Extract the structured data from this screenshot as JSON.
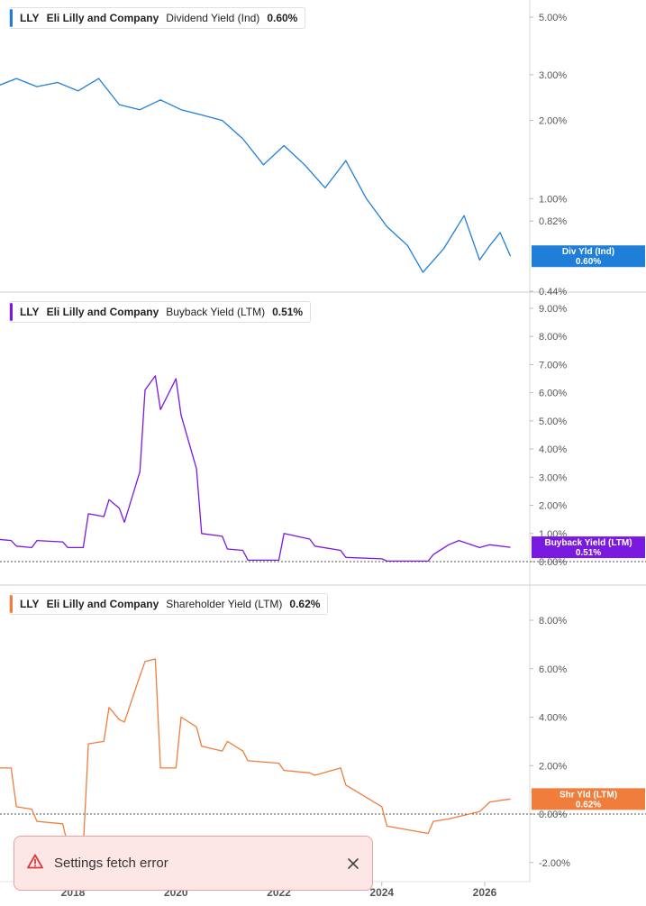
{
  "chart_data": [
    {
      "type": "line",
      "ticker": "LLY",
      "company": "Eli Lilly and Company",
      "metric_label": "Dividend Yield (Ind)",
      "current_value": "0.60%",
      "badge": {
        "title": "Div Yld (Ind)",
        "value": "0.60%"
      },
      "color": "#1f7fd8",
      "y_scale": "log",
      "y_ticks": [
        "5.00%",
        "3.00%",
        "2.00%",
        "1.00%",
        "0.82%",
        "0.44%"
      ],
      "y_tick_values": [
        5.0,
        3.0,
        2.0,
        1.0,
        0.82,
        0.44
      ],
      "ylim": [
        0.44,
        6.0
      ],
      "series": [
        {
          "x": [
            2016.5,
            2016.9,
            2017.3,
            2017.7,
            2018.1,
            2018.5,
            2018.9,
            2019.3,
            2019.7,
            2020.1,
            2020.5,
            2020.9,
            2021.3,
            2021.7,
            2022.1,
            2022.5,
            2022.9,
            2023.3,
            2023.7,
            2024.1,
            2024.5,
            2024.8,
            2025.2,
            2025.6,
            2025.9,
            2026.1,
            2026.3,
            2026.5
          ],
          "y": [
            2.7,
            2.9,
            2.7,
            2.8,
            2.6,
            2.9,
            2.3,
            2.2,
            2.4,
            2.2,
            2.1,
            2.0,
            1.7,
            1.35,
            1.6,
            1.35,
            1.1,
            1.4,
            1.0,
            0.78,
            0.66,
            0.52,
            0.64,
            0.86,
            0.58,
            0.66,
            0.74,
            0.6
          ]
        }
      ]
    },
    {
      "type": "line",
      "ticker": "LLY",
      "company": "Eli Lilly and Company",
      "metric_label": "Buyback Yield (LTM)",
      "current_value": "0.51%",
      "badge": {
        "title": "Buyback Yield (LTM)",
        "value": "0.51%"
      },
      "color": "#7a19e0",
      "y_ticks": [
        "9.00%",
        "8.00%",
        "7.00%",
        "6.00%",
        "5.00%",
        "4.00%",
        "3.00%",
        "2.00%",
        "1.00%",
        "0.00%"
      ],
      "y_tick_values": [
        9,
        8,
        7,
        6,
        5,
        4,
        3,
        2,
        1,
        0
      ],
      "ylim": [
        0,
        9.3
      ],
      "series": [
        {
          "x": [
            2016.5,
            2016.8,
            2016.9,
            2017.2,
            2017.3,
            2017.8,
            2017.9,
            2018.2,
            2018.3,
            2018.6,
            2018.7,
            2018.9,
            2019.0,
            2019.3,
            2019.4,
            2019.6,
            2019.7,
            2020.0,
            2020.1,
            2020.4,
            2020.5,
            2020.9,
            2021.0,
            2021.3,
            2021.4,
            2022.0,
            2022.1,
            2022.6,
            2022.7,
            2023.2,
            2023.3,
            2024.0,
            2024.1,
            2024.9,
            2025.0,
            2025.3,
            2025.5,
            2025.9,
            2026.1,
            2026.5
          ],
          "y": [
            0.8,
            0.75,
            0.55,
            0.5,
            0.75,
            0.7,
            0.5,
            0.5,
            1.7,
            1.6,
            2.2,
            1.9,
            1.4,
            3.2,
            6.1,
            6.6,
            5.4,
            6.5,
            5.2,
            3.3,
            1.0,
            0.9,
            0.45,
            0.4,
            0.05,
            0.05,
            1.0,
            0.8,
            0.55,
            0.4,
            0.15,
            0.1,
            0.02,
            0.02,
            0.25,
            0.6,
            0.75,
            0.5,
            0.6,
            0.51
          ]
        }
      ]
    },
    {
      "type": "line",
      "ticker": "LLY",
      "company": "Eli Lilly and Company",
      "metric_label": "Shareholder Yield (LTM)",
      "current_value": "0.62%",
      "badge": {
        "title": "Shr Yld (LTM)",
        "value": "0.62%"
      },
      "color": "#ef7d3c",
      "y_ticks": [
        "8.00%",
        "6.00%",
        "4.00%",
        "2.00%",
        "0.00%",
        "-2.00%"
      ],
      "y_tick_values": [
        8,
        6,
        4,
        2,
        0,
        -2
      ],
      "ylim": [
        -2.5,
        9.3
      ],
      "series": [
        {
          "x": [
            2016.5,
            2016.8,
            2016.9,
            2017.2,
            2017.3,
            2017.8,
            2017.9,
            2018.2,
            2018.3,
            2018.6,
            2018.7,
            2018.9,
            2019.0,
            2019.3,
            2019.4,
            2019.6,
            2019.7,
            2020.0,
            2020.1,
            2020.4,
            2020.5,
            2020.9,
            2021.0,
            2021.3,
            2021.4,
            2022.0,
            2022.1,
            2022.6,
            2022.7,
            2023.2,
            2023.3,
            2024.0,
            2024.1,
            2024.9,
            2025.0,
            2025.3,
            2025.5,
            2025.9,
            2026.1,
            2026.5
          ],
          "y": [
            1.9,
            1.9,
            0.3,
            0.2,
            -0.3,
            -0.4,
            -1.3,
            -1.4,
            2.9,
            3.0,
            4.4,
            3.9,
            3.8,
            5.7,
            6.3,
            6.4,
            1.9,
            1.9,
            4.0,
            3.6,
            2.8,
            2.6,
            3.0,
            2.6,
            2.2,
            2.1,
            1.8,
            1.7,
            1.6,
            1.9,
            1.2,
            0.3,
            -0.5,
            -0.8,
            -0.3,
            -0.2,
            -0.1,
            0.1,
            0.5,
            0.62
          ]
        }
      ]
    }
  ],
  "x_axis": {
    "ticks": [
      "2018",
      "2020",
      "2022",
      "2024",
      "2026"
    ],
    "tick_values": [
      2018,
      2020,
      2022,
      2024,
      2026
    ],
    "xlim": [
      2016.5,
      2027.0
    ]
  },
  "toast": {
    "message": "Settings fetch error",
    "icon": "warning-triangle-icon",
    "close_icon": "close-icon"
  }
}
